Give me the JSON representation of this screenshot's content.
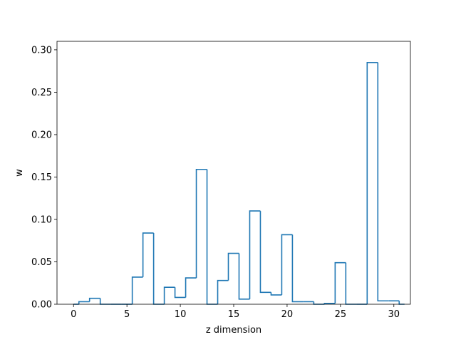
{
  "chart_data": {
    "type": "step-histogram",
    "xlabel": "z dimension",
    "ylabel": "w",
    "xlim": [
      -1.55,
      31.55
    ],
    "ylim": [
      0,
      0.31
    ],
    "x_ticks": [
      0,
      5,
      10,
      15,
      20,
      25,
      30
    ],
    "x_tick_labels": [
      "0",
      "5",
      "10",
      "15",
      "20",
      "25",
      "30"
    ],
    "y_ticks": [
      0,
      0.05,
      0.1,
      0.15,
      0.2,
      0.25,
      0.3
    ],
    "y_tick_labels": [
      "0.00",
      "0.05",
      "0.10",
      "0.15",
      "0.20",
      "0.25",
      "0.30"
    ],
    "bin_edges": [
      0.0,
      0.5,
      1.5,
      2.5,
      3.5,
      4.5,
      5.5,
      6.5,
      7.5,
      8.5,
      9.5,
      10.5,
      11.5,
      12.5,
      13.5,
      14.5,
      15.5,
      16.5,
      17.5,
      18.5,
      19.5,
      20.5,
      21.5,
      22.5,
      23.5,
      24.5,
      25.5,
      26.5,
      27.5,
      28.5,
      29.5,
      30.5,
      31.0
    ],
    "values": [
      0.0,
      0.003,
      0.007,
      0.0,
      0.0,
      0.0,
      0.032,
      0.084,
      0.0,
      0.02,
      0.008,
      0.031,
      0.159,
      0.0,
      0.028,
      0.06,
      0.006,
      0.11,
      0.014,
      0.011,
      0.082,
      0.003,
      0.003,
      0.0,
      0.001,
      0.049,
      0.0,
      0.0,
      0.285,
      0.004,
      0.004,
      0.0
    ],
    "line_color": "#1f77b4",
    "grid": false
  }
}
